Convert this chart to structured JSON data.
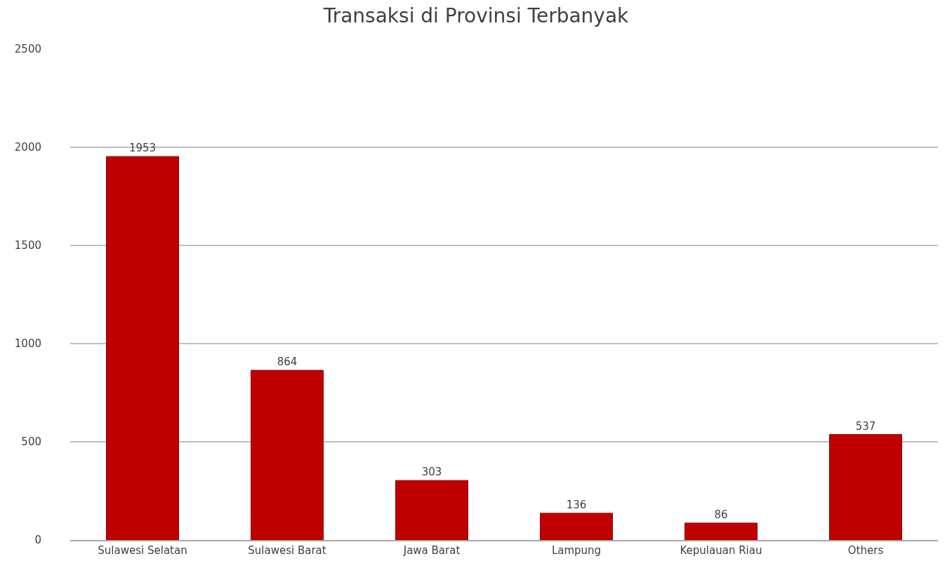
{
  "chart_data": {
    "type": "bar",
    "title": "Transaksi di Provinsi Terbanyak",
    "categories": [
      "Sulawesi Selatan",
      "Sulawesi Barat",
      "Jawa Barat",
      "Lampung",
      "Kepulauan Riau",
      "Others"
    ],
    "values": [
      1953,
      864,
      303,
      136,
      86,
      537
    ],
    "color": "#c00000",
    "ylim": [
      0,
      2500
    ],
    "yticks": [
      0,
      500,
      1000,
      1500,
      2000,
      2500
    ],
    "grid": "y",
    "data_labels": true
  }
}
